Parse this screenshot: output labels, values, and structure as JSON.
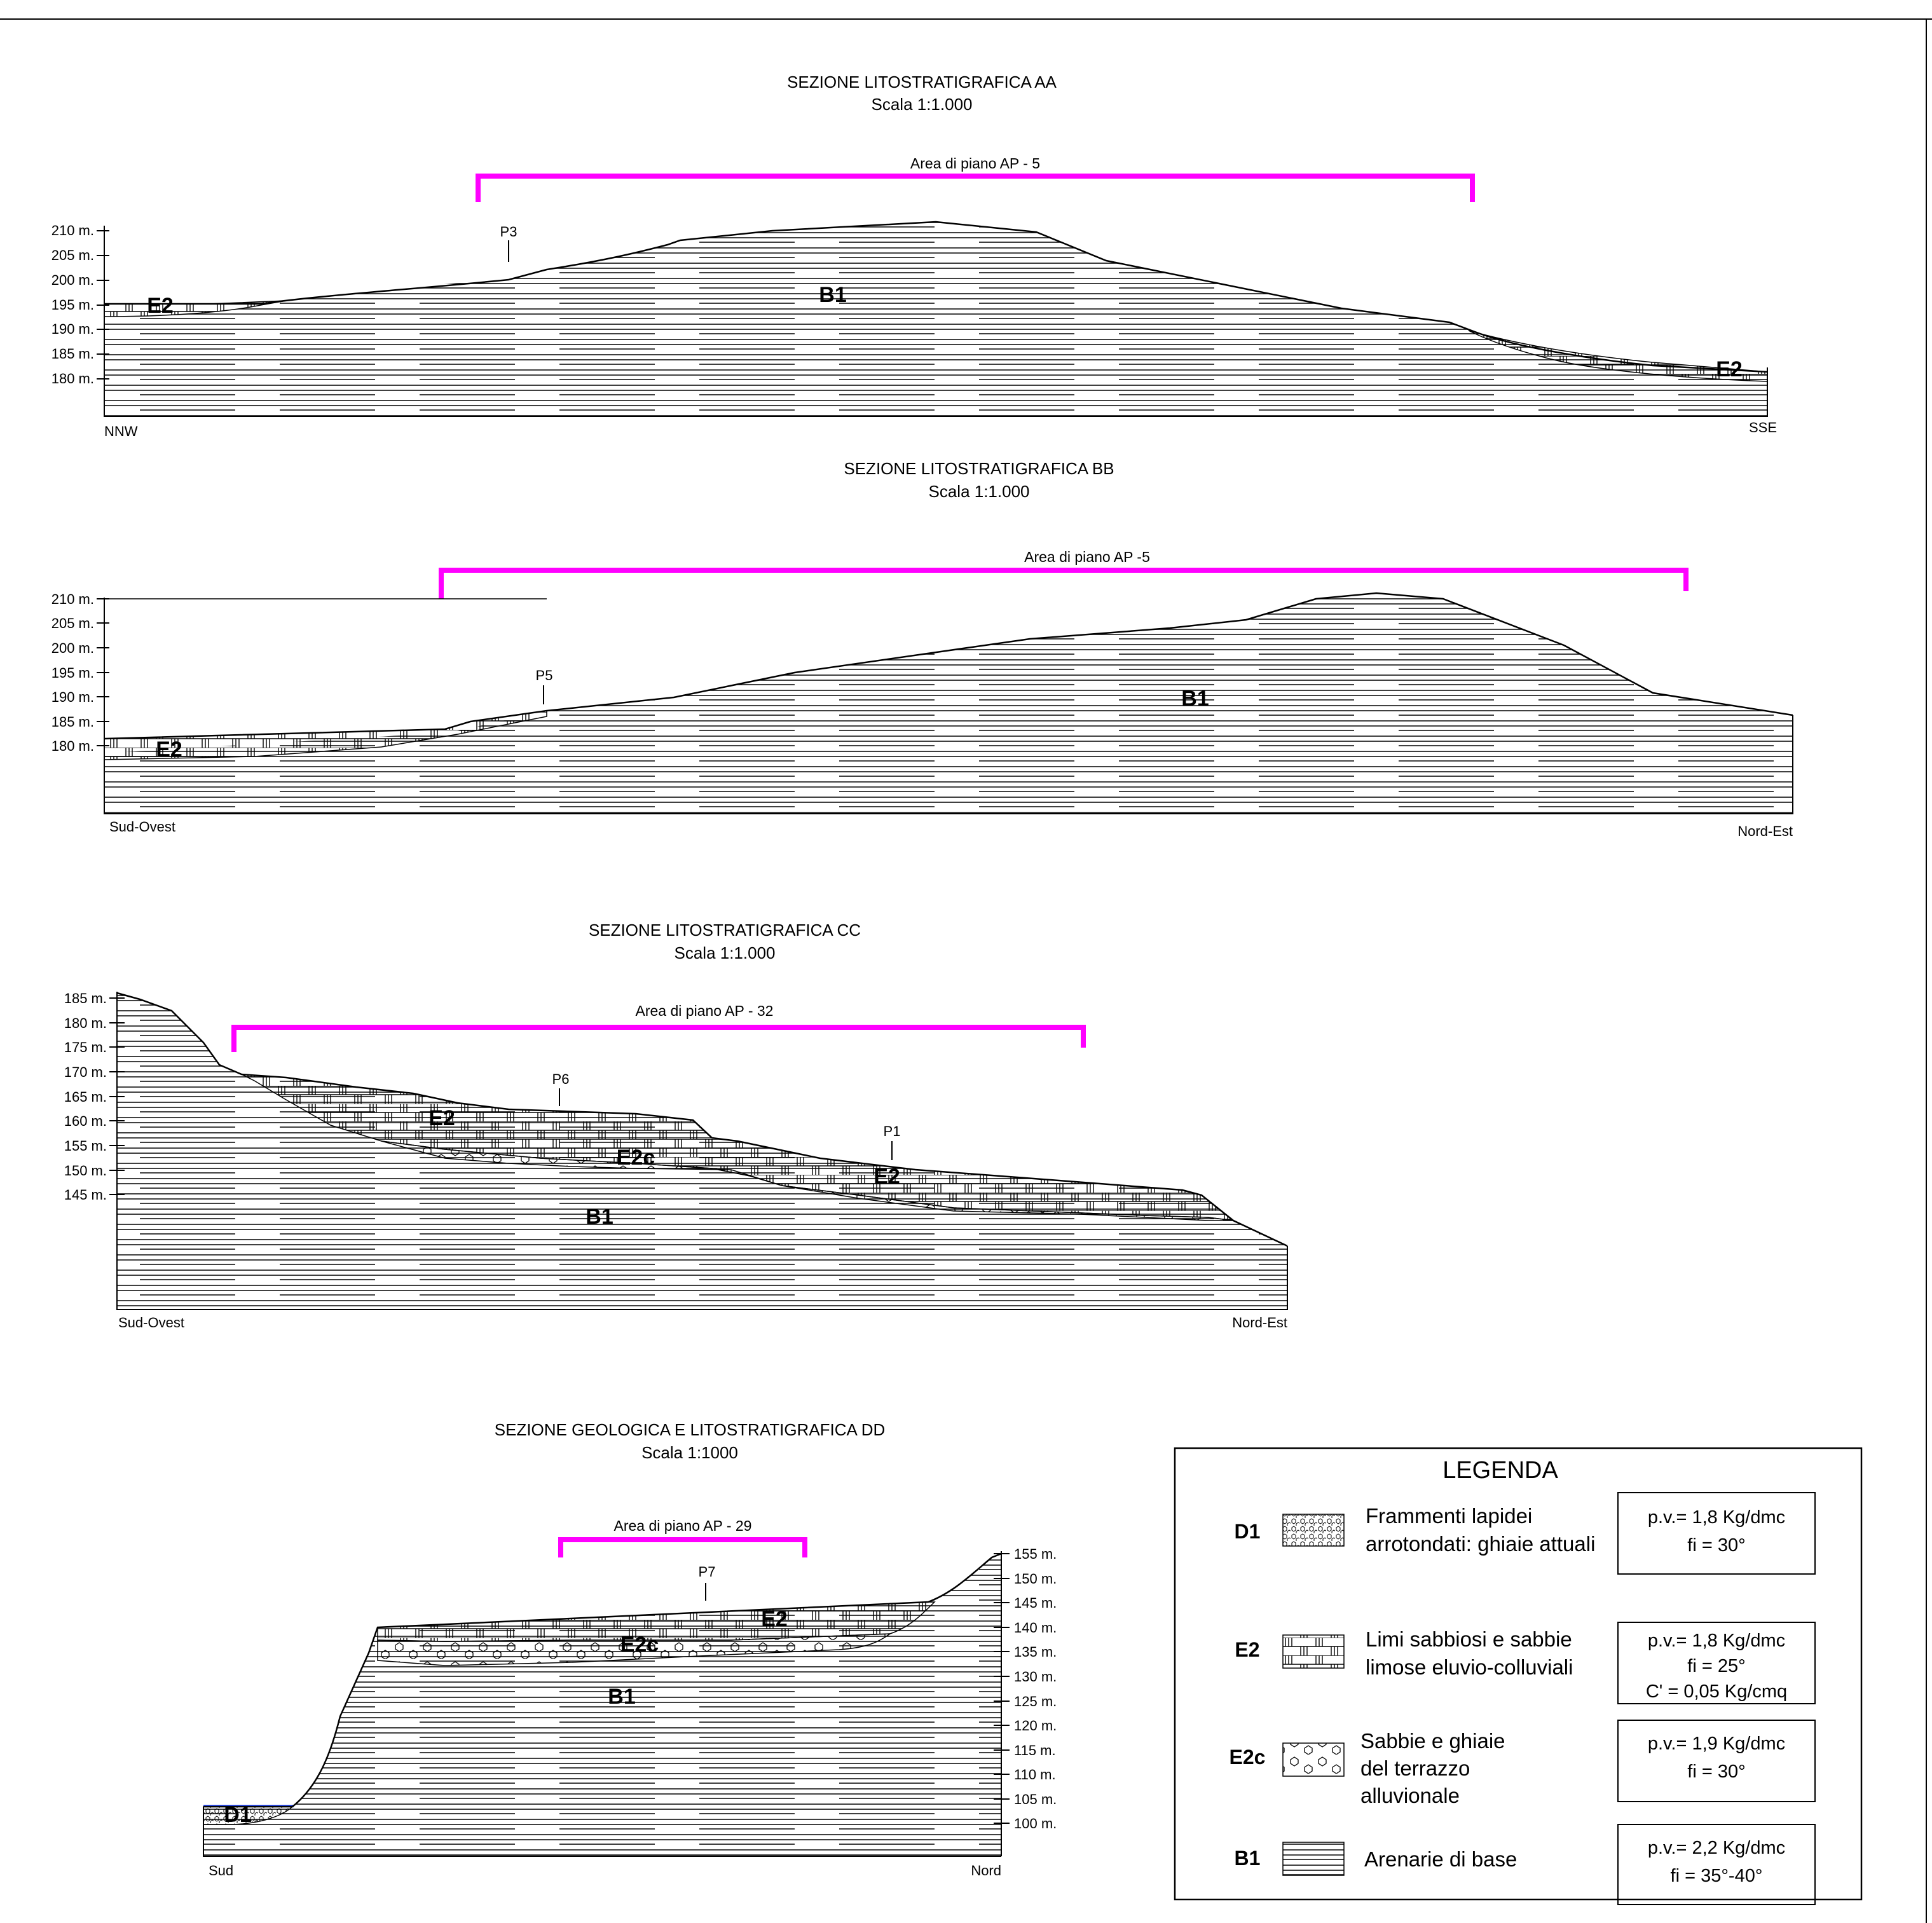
{
  "sections": {
    "aa": {
      "title": "SEZIONE LITOSTRATIGRAFICA AA",
      "scale": "Scala 1:1.000",
      "area": "Area di piano AP - 5",
      "left_dir": "NNW",
      "right_dir": "SSE",
      "axis": [
        "210 m.",
        "205 m.",
        "200 m.",
        "195 m.",
        "190 m.",
        "185 m.",
        "180 m."
      ],
      "wells": [
        "P3"
      ],
      "units": [
        "E2",
        "B1",
        "E2"
      ]
    },
    "bb": {
      "title": "SEZIONE LITOSTRATIGRAFICA BB",
      "scale": "Scala 1:1.000",
      "area": "Area di piano AP -5",
      "left_dir": "Sud-Ovest",
      "right_dir": "Nord-Est",
      "axis": [
        "210 m.",
        "205 m.",
        "200 m.",
        "195 m.",
        "190 m.",
        "185 m.",
        "180 m."
      ],
      "wells": [
        "P5"
      ],
      "units": [
        "E2",
        "B1"
      ]
    },
    "cc": {
      "title": "SEZIONE LITOSTRATIGRAFICA CC",
      "scale": "Scala 1:1.000",
      "area": "Area di piano AP - 32",
      "left_dir": "Sud-Ovest",
      "right_dir": "Nord-Est",
      "axis": [
        "185 m.",
        "180 m.",
        "175 m.",
        "170 m.",
        "165 m.",
        "160 m.",
        "155 m.",
        "150 m.",
        "145 m."
      ],
      "wells": [
        "P6",
        "P1"
      ],
      "units": [
        "E2",
        "E2c",
        "E2",
        "B1"
      ]
    },
    "dd": {
      "title": "SEZIONE GEOLOGICA E LITOSTRATIGRAFICA DD",
      "scale": "Scala 1:1000",
      "area": "Area di piano AP - 29",
      "left_dir": "Sud",
      "right_dir": "Nord",
      "axis": [
        "155 m.",
        "150 m.",
        "145 m.",
        "140 m.",
        "135 m.",
        "130 m.",
        "125 m.",
        "120 m.",
        "115 m.",
        "110 m.",
        "105 m.",
        "100 m."
      ],
      "wells": [
        "P7"
      ],
      "units": [
        "E2",
        "E2c",
        "B1",
        "D1"
      ]
    }
  },
  "legend": {
    "title": "LEGENDA",
    "items": [
      {
        "code": "D1",
        "desc": [
          "Frammenti lapidei",
          "arrotondati: ghiaie attuali"
        ],
        "props": [
          "p.v.= 1,8 Kg/dmc",
          "fi = 30°"
        ]
      },
      {
        "code": "E2",
        "desc": [
          "Limi sabbiosi e sabbie",
          "limose eluvio-colluviali"
        ],
        "props": [
          "p.v.= 1,8 Kg/dmc",
          "fi = 25°",
          "C' = 0,05 Kg/cmq"
        ]
      },
      {
        "code": "E2c",
        "desc": [
          "Sabbie e ghiaie",
          "del terrazzo",
          "alluvionale"
        ],
        "props": [
          "p.v.= 1,9 Kg/dmc",
          "fi = 30°"
        ]
      },
      {
        "code": "B1",
        "desc": [
          "Arenarie di base"
        ],
        "props": [
          "p.v.= 2,2 Kg/dmc",
          "fi = 35°-40°"
        ]
      }
    ]
  },
  "colors": {
    "area_bracket": "#ff00ff",
    "water_line": "#3355ff",
    "line": "#000000"
  }
}
